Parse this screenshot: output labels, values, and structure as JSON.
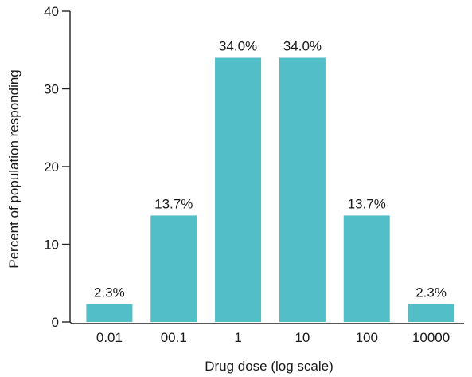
{
  "chart_data": {
    "type": "bar",
    "categories": [
      "0.01",
      "00.1",
      "1",
      "10",
      "100",
      "10000"
    ],
    "values": [
      2.3,
      13.7,
      34.0,
      34.0,
      13.7,
      2.3
    ],
    "data_labels": [
      "2.3%",
      "13.7%",
      "34.0%",
      "34.0%",
      "13.7%",
      "2.3%"
    ],
    "title": "",
    "xlabel": "Drug dose (log scale)",
    "ylabel": "Percent of population responding",
    "ylim": [
      0,
      40
    ],
    "yticks": [
      "0",
      "10",
      "20",
      "30",
      "40"
    ],
    "bar_color": "#52bec8",
    "grid": false,
    "legend": "none"
  }
}
